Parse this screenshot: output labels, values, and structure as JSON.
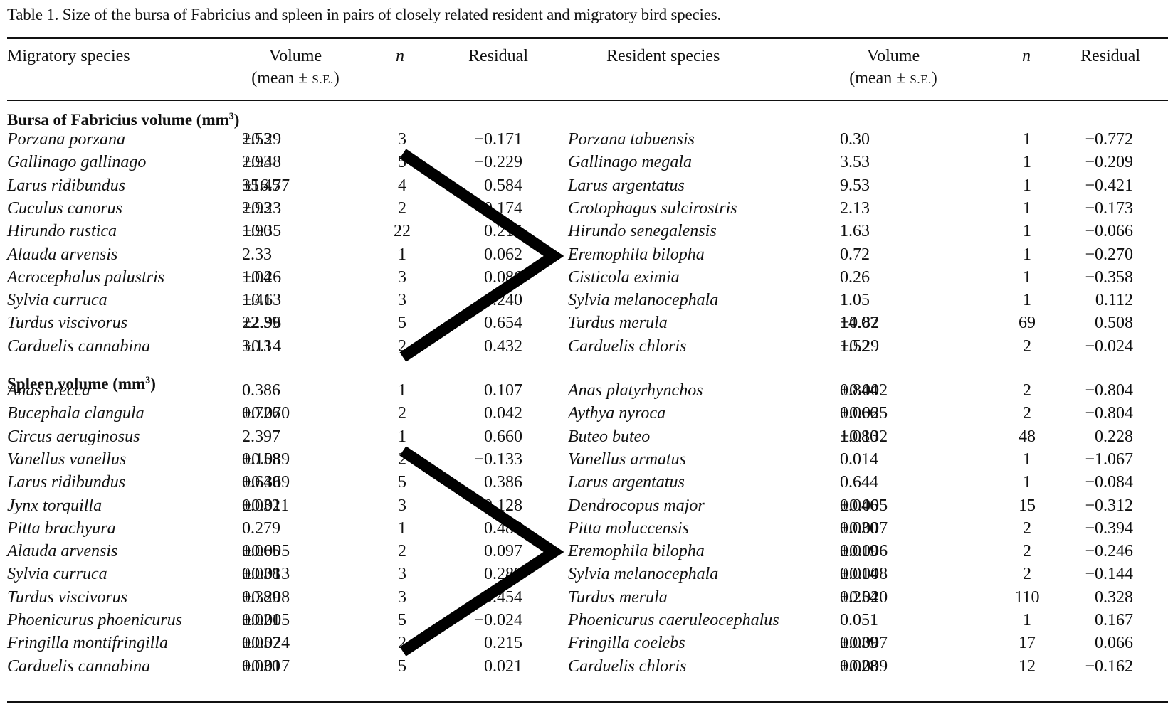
{
  "caption": "Table 1. Size of the bursa of Fabricius and spleen in pairs of closely related resident and migratory bird species.",
  "headers": {
    "migratory_species": "Migratory species",
    "volume": "Volume",
    "volume_sub_open": "(mean ±",
    "volume_sub_se": "S.E.",
    "volume_sub_close": ")",
    "n": "n",
    "residual": "Residual",
    "resident_species": "Resident species"
  },
  "sections": [
    {
      "title": "Bursa of Fabricius volume (mm",
      "unit_sup": "3",
      "title_close": ")",
      "rows": [
        {
          "mig": "Porzana porzana",
          "mig_mean": "2.53",
          "mig_se": "0.29",
          "mig_n": "3",
          "mig_res": "−0.171",
          "res": "Porzana tabuensis",
          "res_mean": "0.30",
          "res_se": "",
          "res_n": "1",
          "res_res": "−0.772"
        },
        {
          "mig": "Gallinago gallinago",
          "mig_mean": "2.93",
          "mig_se": "0.48",
          "mig_n": "5",
          "mig_res": "−0.229",
          "res": "Gallinago megala",
          "res_mean": "3.53",
          "res_se": "",
          "res_n": "1",
          "res_res": "−0.209"
        },
        {
          "mig": "Larus ridibundus",
          "mig_mean": "35.45",
          "mig_se": "16.77",
          "mig_n": "4",
          "mig_res": "0.584",
          "res": "Larus argentatus",
          "res_mean": "9.53",
          "res_se": "",
          "res_n": "1",
          "res_res": "−0.421"
        },
        {
          "mig": "Cuculus canorus",
          "mig_mean": "2.93",
          "mig_se": "0.23",
          "mig_n": "2",
          "mig_res": "−0.174",
          "res": "Crotophagus sulcirostris",
          "res_mean": "2.13",
          "res_se": "",
          "res_n": "1",
          "res_res": "−0.173"
        },
        {
          "mig": "Hirundo rustica",
          "mig_mean": "1.90",
          "mig_se": "0.35",
          "mig_n": "22",
          "mig_res": "0.215",
          "res": "Hirundo senegalensis",
          "res_mean": "1.63",
          "res_se": "",
          "res_n": "1",
          "res_res": "−0.066"
        },
        {
          "mig": "Alauda arvensis",
          "mig_mean": "2.33",
          "mig_se": "",
          "mig_n": "1",
          "mig_res": "0.062",
          "res": "Eremophila bilopha",
          "res_mean": "0.72",
          "res_se": "",
          "res_n": "1",
          "res_res": "−0.270"
        },
        {
          "mig": "Acrocephalus palustris",
          "mig_mean": "1.04",
          "mig_se": "0.26",
          "mig_n": "3",
          "mig_res": "0.086",
          "res": "Cisticola eximia",
          "res_mean": "0.26",
          "res_se": "",
          "res_n": "1",
          "res_res": "−0.358"
        },
        {
          "mig": "Sylvia curruca",
          "mig_mean": "1.41",
          "mig_se": "0.63",
          "mig_n": "3",
          "mig_res": "0.240",
          "res": "Sylvia melanocephala",
          "res_mean": "1.05",
          "res_se": "",
          "res_n": "1",
          "res_res": "0.112"
        },
        {
          "mig": "Turdus viscivorus",
          "mig_mean": "22.39",
          "mig_se": "2.96",
          "mig_n": "5",
          "mig_res": "0.654",
          "res": "Turdus merula",
          "res_mean": "14.07",
          "res_se": "0.82",
          "res_n": "69",
          "res_res": "0.508"
        },
        {
          "mig": "Carduelis cannabina",
          "mig_mean": "3.13",
          "mig_se": "0.14",
          "mig_n": "2",
          "mig_res": "0.432",
          "res": "Carduelis chloris",
          "res_mean": "1.52",
          "res_se": "0.29",
          "res_n": "2",
          "res_res": "−0.024"
        }
      ]
    },
    {
      "title": "Spleen volume (mm",
      "unit_sup": "3",
      "title_close": ")",
      "rows": [
        {
          "mig": "Anas crecca",
          "mig_mean": "0.386",
          "mig_se": "",
          "mig_n": "1",
          "mig_res": "0.107",
          "res": "Anas platyrhynchos",
          "res_mean": "0.844",
          "res_se": "0.002",
          "res_n": "2",
          "res_res": "−0.804"
        },
        {
          "mig": "Bucephala clangula",
          "mig_mean": "0.726",
          "mig_se": "0.070",
          "mig_n": "2",
          "mig_res": "0.042",
          "res": "Aythya nyroca",
          "res_mean": "0.066",
          "res_se": "0.025",
          "res_n": "2",
          "res_res": "−0.804"
        },
        {
          "mig": "Circus aeruginosus",
          "mig_mean": "2.397",
          "mig_se": "",
          "mig_n": "1",
          "mig_res": "0.660",
          "res": "Buteo buteo",
          "res_mean": "1.080",
          "res_se": "0.132",
          "res_n": "48",
          "res_res": "0.228"
        },
        {
          "mig": "Vanellus vanellus",
          "mig_mean": "0.158",
          "mig_se": "0.089",
          "mig_n": "2",
          "mig_res": "−0.133",
          "res": "Vanellus armatus",
          "res_mean": "0.014",
          "res_se": "",
          "res_n": "1",
          "res_res": "−1.067"
        },
        {
          "mig": "Larus ridibundus",
          "mig_mean": "0.640",
          "mig_se": "0.369",
          "mig_n": "5",
          "mig_res": "0.386",
          "res": "Larus argentatus",
          "res_mean": "0.644",
          "res_se": "",
          "res_n": "1",
          "res_res": "−0.084"
        },
        {
          "mig": "Jynx torquilla",
          "mig_mean": "0.032",
          "mig_se": "0.011",
          "mig_n": "3",
          "mig_res": "−0.128",
          "res": "Dendrocopus major",
          "res_mean": "0.046",
          "res_se": "0.005",
          "res_n": "15",
          "res_res": "−0.312"
        },
        {
          "mig": "Pitta brachyura",
          "mig_mean": "0.279",
          "mig_se": "",
          "mig_n": "1",
          "mig_res": "0.485",
          "res": "Pitta moluccensis",
          "res_mean": "0.030",
          "res_se": "0.007",
          "res_n": "2",
          "res_res": "−0.394"
        },
        {
          "mig": "Alauda arvensis",
          "mig_mean": "0.065",
          "mig_se": "0.005",
          "mig_n": "2",
          "mig_res": "0.097",
          "res": "Eremophila bilopha",
          "res_mean": "0.019",
          "res_se": "0.006",
          "res_n": "2",
          "res_res": "−0.246"
        },
        {
          "mig": "Sylvia curruca",
          "mig_mean": "0.038",
          "mig_se": "0.013",
          "mig_n": "3",
          "mig_res": "0.289",
          "res": "Sylvia melanocephala",
          "res_mean": "0.014",
          "res_se": "0.008",
          "res_n": "2",
          "res_res": "−0.144"
        },
        {
          "mig": "Turdus viscivorus",
          "mig_mean": "0.389",
          "mig_se": "0.208",
          "mig_n": "3",
          "mig_res": "0.454",
          "res": "Turdus merula",
          "res_mean": "0.254",
          "res_se": "0.020",
          "res_n": "110",
          "res_res": "0.328"
        },
        {
          "mig": "Phoenicurus phoenicurus",
          "mig_mean": "0.021",
          "mig_se": "0.005",
          "mig_n": "5",
          "mig_res": "−0.024",
          "res": "Phoenicurus caeruleocephalus",
          "res_mean": "0.051",
          "res_se": "",
          "res_n": "1",
          "res_res": "0.167"
        },
        {
          "mig": "Fringilla montifringilla",
          "mig_mean": "0.057",
          "mig_se": "0.024",
          "mig_n": "2",
          "mig_res": "0.215",
          "res": "Fringilla coelebs",
          "res_mean": "0.039",
          "res_se": "0.007",
          "res_n": "17",
          "res_res": "0.066"
        },
        {
          "mig": "Carduelis cannabina",
          "mig_mean": "0.030",
          "mig_se": "0.017",
          "mig_n": "5",
          "mig_res": "0.021",
          "res": "Carduelis chloris",
          "res_mean": "0.028",
          "res_se": "0.009",
          "res_n": "12",
          "res_res": "−0.162"
        }
      ]
    }
  ],
  "annotations": {
    "mark": "greater-than chevron",
    "color": "#000000"
  }
}
